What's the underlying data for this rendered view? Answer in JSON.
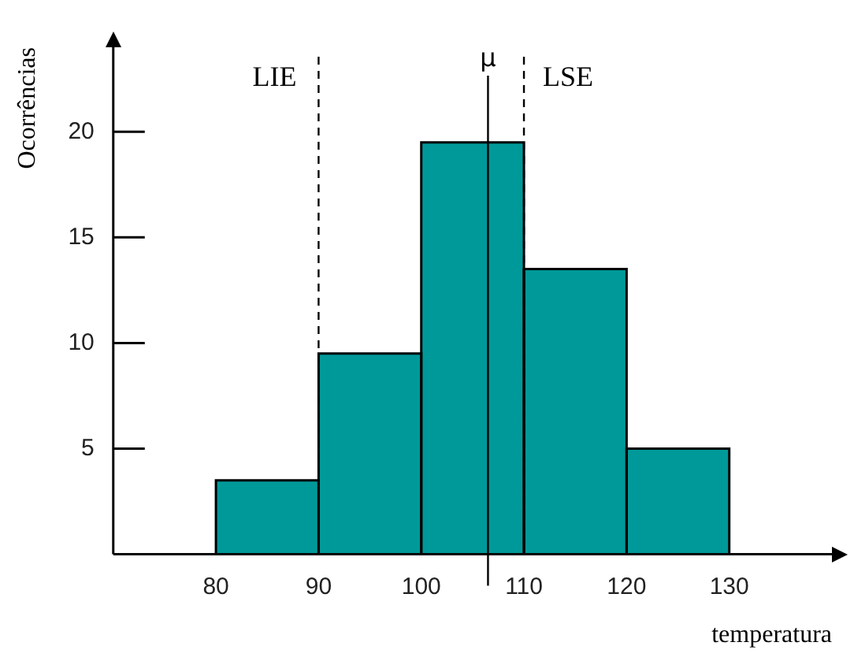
{
  "chart_data": {
    "type": "histogram",
    "xlabel": "temperatura",
    "ylabel": "Ocorrências",
    "bins": [
      80,
      90,
      100,
      110,
      120,
      130
    ],
    "values": [
      3.5,
      9.5,
      19.5,
      13.5,
      5
    ],
    "color": "#009999",
    "xlim": [
      70,
      140
    ],
    "xticks": [
      80,
      90,
      100,
      110,
      120,
      130
    ],
    "ylim": [
      0,
      24
    ],
    "yticks": [
      5,
      10,
      15,
      20
    ],
    "grid": false,
    "legend": false,
    "ref_lines": [
      {
        "axis": "x",
        "value": 90,
        "label": "LIE",
        "line_style": "dashed"
      },
      {
        "axis": "x",
        "value": 110,
        "label": "LSE",
        "line_style": "dashed"
      },
      {
        "axis": "x",
        "value": 106.5,
        "label": "μ",
        "line_style": "solid"
      }
    ]
  }
}
